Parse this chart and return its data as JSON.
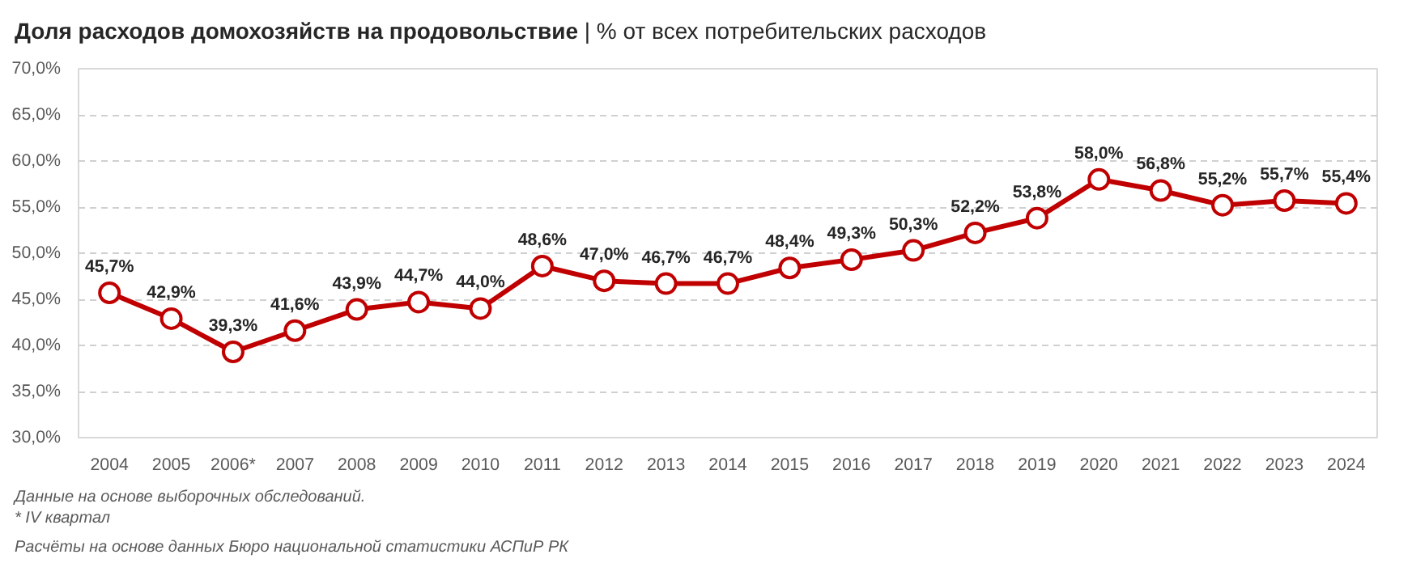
{
  "chart_data": {
    "type": "line",
    "title": "Доля расходов домохозяйств на продовольствие",
    "subtitle": "| % от всех потребительских расходов",
    "categories": [
      "2004",
      "2005",
      "2006*",
      "2007",
      "2008",
      "2009",
      "2010",
      "2011",
      "2012",
      "2013",
      "2014",
      "2015",
      "2016",
      "2017",
      "2018",
      "2019",
      "2020",
      "2021",
      "2022",
      "2023",
      "2024"
    ],
    "series": [
      {
        "color": "#c00000",
        "values": [
          45.7,
          42.9,
          39.3,
          41.6,
          43.9,
          44.7,
          44.0,
          48.6,
          47.0,
          46.7,
          46.7,
          48.4,
          49.3,
          50.3,
          52.2,
          53.8,
          58.0,
          56.8,
          55.2,
          55.7,
          55.4
        ],
        "value_labels": [
          "45,7%",
          "42,9%",
          "39,3%",
          "41,6%",
          "43,9%",
          "44,7%",
          "44,0%",
          "48,6%",
          "47,0%",
          "46,7%",
          "46,7%",
          "48,4%",
          "49,3%",
          "50,3%",
          "52,2%",
          "53,8%",
          "58,0%",
          "56,8%",
          "55,2%",
          "55,7%",
          "55,4%"
        ]
      }
    ],
    "ylim": [
      30,
      70
    ],
    "yticks": [
      {
        "value": 30,
        "label": "30,0%"
      },
      {
        "value": 35,
        "label": "35,0%"
      },
      {
        "value": 40,
        "label": "40,0%"
      },
      {
        "value": 45,
        "label": "45,0%"
      },
      {
        "value": 50,
        "label": "50,0%"
      },
      {
        "value": 55,
        "label": "55,0%"
      },
      {
        "value": 60,
        "label": "60,0%"
      },
      {
        "value": 65,
        "label": "65,0%"
      },
      {
        "value": 70,
        "label": "70,0%"
      }
    ],
    "grid": "y",
    "marker": "circle",
    "line_style": "solid",
    "annotations": [
      "Данные на основе выборочных обследований.",
      "* IV квартал",
      "Расчёты на основе данных Бюро национальной статистики АСПиР РК"
    ]
  }
}
